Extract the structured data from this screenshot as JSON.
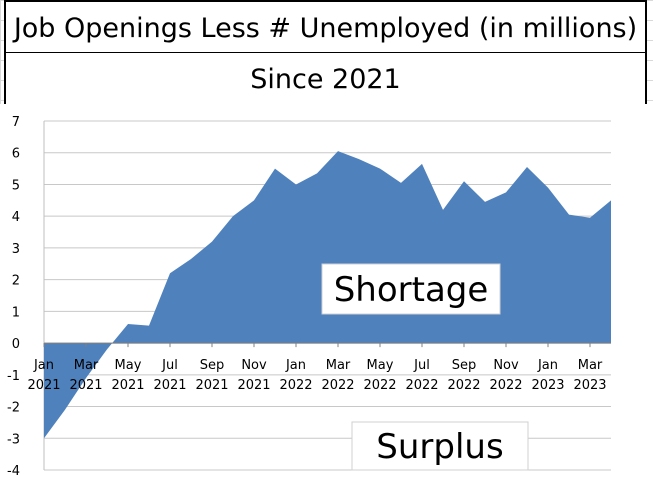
{
  "chart_data": {
    "type": "area",
    "title": "Job Openings Less # Unemployed (in millions)",
    "subtitle": "Since 2021",
    "ylim": [
      -4,
      7
    ],
    "yticks": [
      -4,
      -3,
      -2,
      -1,
      0,
      1,
      2,
      3,
      4,
      5,
      6,
      7
    ],
    "grid": true,
    "x": [
      "Jan 2021",
      "Feb 2021",
      "Mar 2021",
      "Apr 2021",
      "May 2021",
      "Jun 2021",
      "Jul 2021",
      "Aug 2021",
      "Sep 2021",
      "Oct 2021",
      "Nov 2021",
      "Dec 2021",
      "Jan 2022",
      "Feb 2022",
      "Mar 2022",
      "Apr 2022",
      "May 2022",
      "Jun 2022",
      "Jul 2022",
      "Aug 2022",
      "Sep 2022",
      "Oct 2022",
      "Nov 2022",
      "Dec 2022",
      "Jan 2023",
      "Feb 2023",
      "Mar 2023",
      "Apr 2023"
    ],
    "x_tick_labels": [
      {
        "month": "Jan",
        "year": "2021",
        "index": 0
      },
      {
        "month": "Mar",
        "year": "2021",
        "index": 2
      },
      {
        "month": "May",
        "year": "2021",
        "index": 4
      },
      {
        "month": "Jul",
        "year": "2021",
        "index": 6
      },
      {
        "month": "Sep",
        "year": "2021",
        "index": 8
      },
      {
        "month": "Nov",
        "year": "2021",
        "index": 10
      },
      {
        "month": "Jan",
        "year": "2022",
        "index": 12
      },
      {
        "month": "Mar",
        "year": "2022",
        "index": 14
      },
      {
        "month": "May",
        "year": "2022",
        "index": 16
      },
      {
        "month": "Jul",
        "year": "2022",
        "index": 18
      },
      {
        "month": "Sep",
        "year": "2022",
        "index": 20
      },
      {
        "month": "Nov",
        "year": "2022",
        "index": 22
      },
      {
        "month": "Jan",
        "year": "2023",
        "index": 24
      },
      {
        "month": "Mar",
        "year": "2023",
        "index": 26
      }
    ],
    "series": [
      {
        "values": [
          -3.0,
          -2.1,
          -1.1,
          -0.2,
          0.6,
          0.55,
          2.2,
          2.65,
          3.2,
          4.0,
          4.5,
          5.5,
          5.0,
          5.35,
          6.05,
          5.8,
          5.5,
          5.05,
          5.65,
          4.2,
          5.1,
          4.45,
          4.75,
          5.55,
          4.9,
          4.05,
          3.95,
          4.5
        ],
        "color": "#4f81bd"
      }
    ],
    "annotations": [
      "Shortage",
      "Surplus"
    ]
  }
}
